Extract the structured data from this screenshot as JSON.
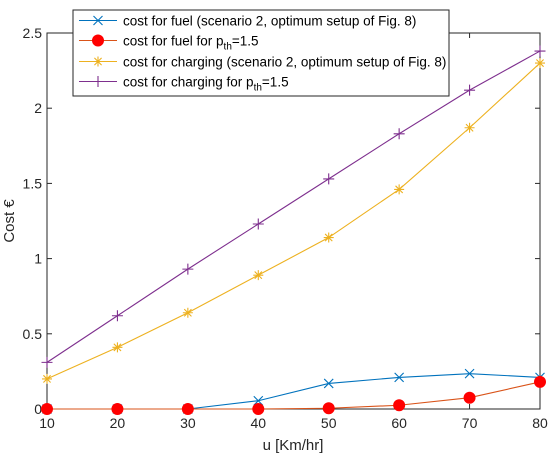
{
  "chart_data": {
    "type": "line",
    "x": [
      10,
      20,
      30,
      40,
      50,
      60,
      70,
      80
    ],
    "xlabel": "u [Km/hr]",
    "ylabel": "Cost €",
    "xlim": [
      10,
      80
    ],
    "ylim": [
      0,
      2.5
    ],
    "xticks": [
      "10",
      "20",
      "30",
      "40",
      "50",
      "60",
      "70",
      "80"
    ],
    "yticks": [
      "0",
      "0.5",
      "1",
      "1.5",
      "2",
      "2.5"
    ],
    "grid": false,
    "legend_position": "top-left",
    "series": [
      {
        "name": "cost for fuel (scenario 2, optimum setup of Fig. 8)",
        "values": [
          0,
          0,
          0,
          0.055,
          0.17,
          0.21,
          0.235,
          0.21
        ],
        "color": "#0072BD",
        "marker": "x"
      },
      {
        "name": "cost for fuel for p_th=1.5",
        "legend_main": "cost for fuel for p",
        "legend_sub": "th",
        "legend_tail": "=1.5",
        "values": [
          0,
          0,
          0,
          0,
          0.005,
          0.025,
          0.075,
          0.18
        ],
        "color": "#D95319",
        "marker_color": "#FF0000",
        "marker": "filled-circle"
      },
      {
        "name": "cost for charging (scenario 2, optimum setup of Fig. 8)",
        "values": [
          0.2,
          0.41,
          0.64,
          0.89,
          1.14,
          1.46,
          1.87,
          2.3
        ],
        "color": "#EDB120",
        "marker": "asterisk"
      },
      {
        "name": "cost for charging for p_th=1.5",
        "legend_main": "cost for charging for p",
        "legend_sub": "th",
        "legend_tail": "=1.5",
        "values": [
          0.31,
          0.62,
          0.93,
          1.23,
          1.53,
          1.83,
          2.12,
          2.38
        ],
        "color": "#7E2F8E",
        "marker": "plus"
      }
    ]
  }
}
